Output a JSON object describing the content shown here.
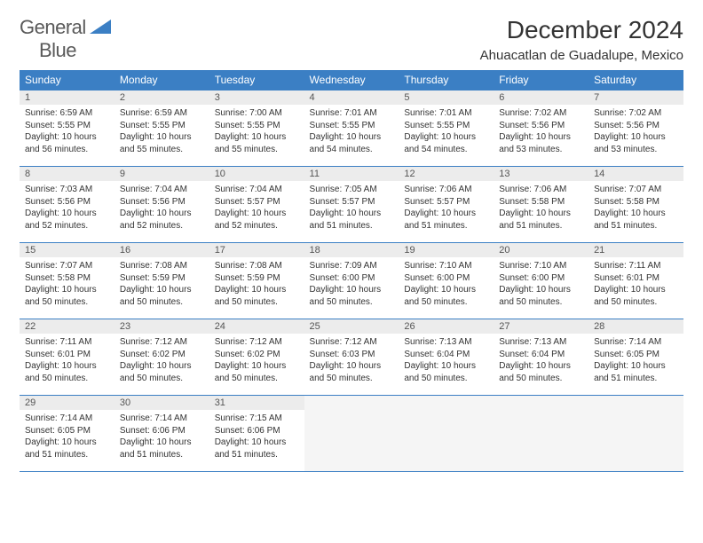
{
  "logo": {
    "text1": "General",
    "text2": "Blue"
  },
  "title": "December 2024",
  "location": "Ahuacatlan de Guadalupe, Mexico",
  "colors": {
    "header_bg": "#3b7fc4",
    "header_fg": "#ffffff",
    "daynum_bg": "#ececec",
    "border": "#3b7fc4",
    "empty_bg": "#f5f5f5"
  },
  "dayNames": [
    "Sunday",
    "Monday",
    "Tuesday",
    "Wednesday",
    "Thursday",
    "Friday",
    "Saturday"
  ],
  "weeks": [
    [
      {
        "n": "1",
        "sr": "Sunrise: 6:59 AM",
        "ss": "Sunset: 5:55 PM",
        "dl": "Daylight: 10 hours and 56 minutes."
      },
      {
        "n": "2",
        "sr": "Sunrise: 6:59 AM",
        "ss": "Sunset: 5:55 PM",
        "dl": "Daylight: 10 hours and 55 minutes."
      },
      {
        "n": "3",
        "sr": "Sunrise: 7:00 AM",
        "ss": "Sunset: 5:55 PM",
        "dl": "Daylight: 10 hours and 55 minutes."
      },
      {
        "n": "4",
        "sr": "Sunrise: 7:01 AM",
        "ss": "Sunset: 5:55 PM",
        "dl": "Daylight: 10 hours and 54 minutes."
      },
      {
        "n": "5",
        "sr": "Sunrise: 7:01 AM",
        "ss": "Sunset: 5:55 PM",
        "dl": "Daylight: 10 hours and 54 minutes."
      },
      {
        "n": "6",
        "sr": "Sunrise: 7:02 AM",
        "ss": "Sunset: 5:56 PM",
        "dl": "Daylight: 10 hours and 53 minutes."
      },
      {
        "n": "7",
        "sr": "Sunrise: 7:02 AM",
        "ss": "Sunset: 5:56 PM",
        "dl": "Daylight: 10 hours and 53 minutes."
      }
    ],
    [
      {
        "n": "8",
        "sr": "Sunrise: 7:03 AM",
        "ss": "Sunset: 5:56 PM",
        "dl": "Daylight: 10 hours and 52 minutes."
      },
      {
        "n": "9",
        "sr": "Sunrise: 7:04 AM",
        "ss": "Sunset: 5:56 PM",
        "dl": "Daylight: 10 hours and 52 minutes."
      },
      {
        "n": "10",
        "sr": "Sunrise: 7:04 AM",
        "ss": "Sunset: 5:57 PM",
        "dl": "Daylight: 10 hours and 52 minutes."
      },
      {
        "n": "11",
        "sr": "Sunrise: 7:05 AM",
        "ss": "Sunset: 5:57 PM",
        "dl": "Daylight: 10 hours and 51 minutes."
      },
      {
        "n": "12",
        "sr": "Sunrise: 7:06 AM",
        "ss": "Sunset: 5:57 PM",
        "dl": "Daylight: 10 hours and 51 minutes."
      },
      {
        "n": "13",
        "sr": "Sunrise: 7:06 AM",
        "ss": "Sunset: 5:58 PM",
        "dl": "Daylight: 10 hours and 51 minutes."
      },
      {
        "n": "14",
        "sr": "Sunrise: 7:07 AM",
        "ss": "Sunset: 5:58 PM",
        "dl": "Daylight: 10 hours and 51 minutes."
      }
    ],
    [
      {
        "n": "15",
        "sr": "Sunrise: 7:07 AM",
        "ss": "Sunset: 5:58 PM",
        "dl": "Daylight: 10 hours and 50 minutes."
      },
      {
        "n": "16",
        "sr": "Sunrise: 7:08 AM",
        "ss": "Sunset: 5:59 PM",
        "dl": "Daylight: 10 hours and 50 minutes."
      },
      {
        "n": "17",
        "sr": "Sunrise: 7:08 AM",
        "ss": "Sunset: 5:59 PM",
        "dl": "Daylight: 10 hours and 50 minutes."
      },
      {
        "n": "18",
        "sr": "Sunrise: 7:09 AM",
        "ss": "Sunset: 6:00 PM",
        "dl": "Daylight: 10 hours and 50 minutes."
      },
      {
        "n": "19",
        "sr": "Sunrise: 7:10 AM",
        "ss": "Sunset: 6:00 PM",
        "dl": "Daylight: 10 hours and 50 minutes."
      },
      {
        "n": "20",
        "sr": "Sunrise: 7:10 AM",
        "ss": "Sunset: 6:00 PM",
        "dl": "Daylight: 10 hours and 50 minutes."
      },
      {
        "n": "21",
        "sr": "Sunrise: 7:11 AM",
        "ss": "Sunset: 6:01 PM",
        "dl": "Daylight: 10 hours and 50 minutes."
      }
    ],
    [
      {
        "n": "22",
        "sr": "Sunrise: 7:11 AM",
        "ss": "Sunset: 6:01 PM",
        "dl": "Daylight: 10 hours and 50 minutes."
      },
      {
        "n": "23",
        "sr": "Sunrise: 7:12 AM",
        "ss": "Sunset: 6:02 PM",
        "dl": "Daylight: 10 hours and 50 minutes."
      },
      {
        "n": "24",
        "sr": "Sunrise: 7:12 AM",
        "ss": "Sunset: 6:02 PM",
        "dl": "Daylight: 10 hours and 50 minutes."
      },
      {
        "n": "25",
        "sr": "Sunrise: 7:12 AM",
        "ss": "Sunset: 6:03 PM",
        "dl": "Daylight: 10 hours and 50 minutes."
      },
      {
        "n": "26",
        "sr": "Sunrise: 7:13 AM",
        "ss": "Sunset: 6:04 PM",
        "dl": "Daylight: 10 hours and 50 minutes."
      },
      {
        "n": "27",
        "sr": "Sunrise: 7:13 AM",
        "ss": "Sunset: 6:04 PM",
        "dl": "Daylight: 10 hours and 50 minutes."
      },
      {
        "n": "28",
        "sr": "Sunrise: 7:14 AM",
        "ss": "Sunset: 6:05 PM",
        "dl": "Daylight: 10 hours and 51 minutes."
      }
    ],
    [
      {
        "n": "29",
        "sr": "Sunrise: 7:14 AM",
        "ss": "Sunset: 6:05 PM",
        "dl": "Daylight: 10 hours and 51 minutes."
      },
      {
        "n": "30",
        "sr": "Sunrise: 7:14 AM",
        "ss": "Sunset: 6:06 PM",
        "dl": "Daylight: 10 hours and 51 minutes."
      },
      {
        "n": "31",
        "sr": "Sunrise: 7:15 AM",
        "ss": "Sunset: 6:06 PM",
        "dl": "Daylight: 10 hours and 51 minutes."
      },
      null,
      null,
      null,
      null
    ]
  ]
}
